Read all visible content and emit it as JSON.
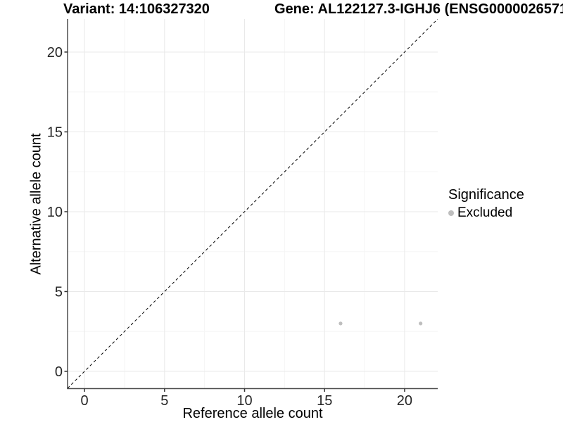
{
  "chart_data": {
    "type": "scatter",
    "titles": {
      "left": "Variant: 14:106327320",
      "right": "Gene: AL122127.3-IGHJ6 (ENSG0000026571"
    },
    "xlabel": "Reference allele count",
    "ylabel": "Alternative allele count",
    "xlim": [
      -1.06,
      22.07
    ],
    "ylim": [
      -1.08,
      22.07
    ],
    "xticks": [
      0,
      5,
      10,
      15,
      20
    ],
    "yticks": [
      0,
      5,
      10,
      15,
      20
    ],
    "xticks_minor": [
      2.5,
      7.5,
      12.5,
      17.5
    ],
    "yticks_minor": [
      2.5,
      7.5,
      12.5,
      17.5
    ],
    "grid": "major and minor gridlines, light gray, white panel",
    "series": [
      {
        "name": "Excluded",
        "color": "#bebebe",
        "points": [
          {
            "x": 16,
            "y": 3
          },
          {
            "x": 21,
            "y": 3
          }
        ]
      }
    ],
    "identity_line": {
      "slope": 1,
      "intercept": 0,
      "style": "dashed",
      "color": "#000000"
    },
    "legend": {
      "title": "Significance",
      "position": "right",
      "entries": [
        {
          "label": "Excluded",
          "color": "#bebebe"
        }
      ]
    },
    "colors": {
      "point": "#bebebe",
      "axis_line": "#4d4d4d",
      "tick": "#333333",
      "tick_label": "#262626",
      "grid_major": "#e9e9e9",
      "grid_minor": "#f5f5f5",
      "background": "#ffffff"
    }
  }
}
